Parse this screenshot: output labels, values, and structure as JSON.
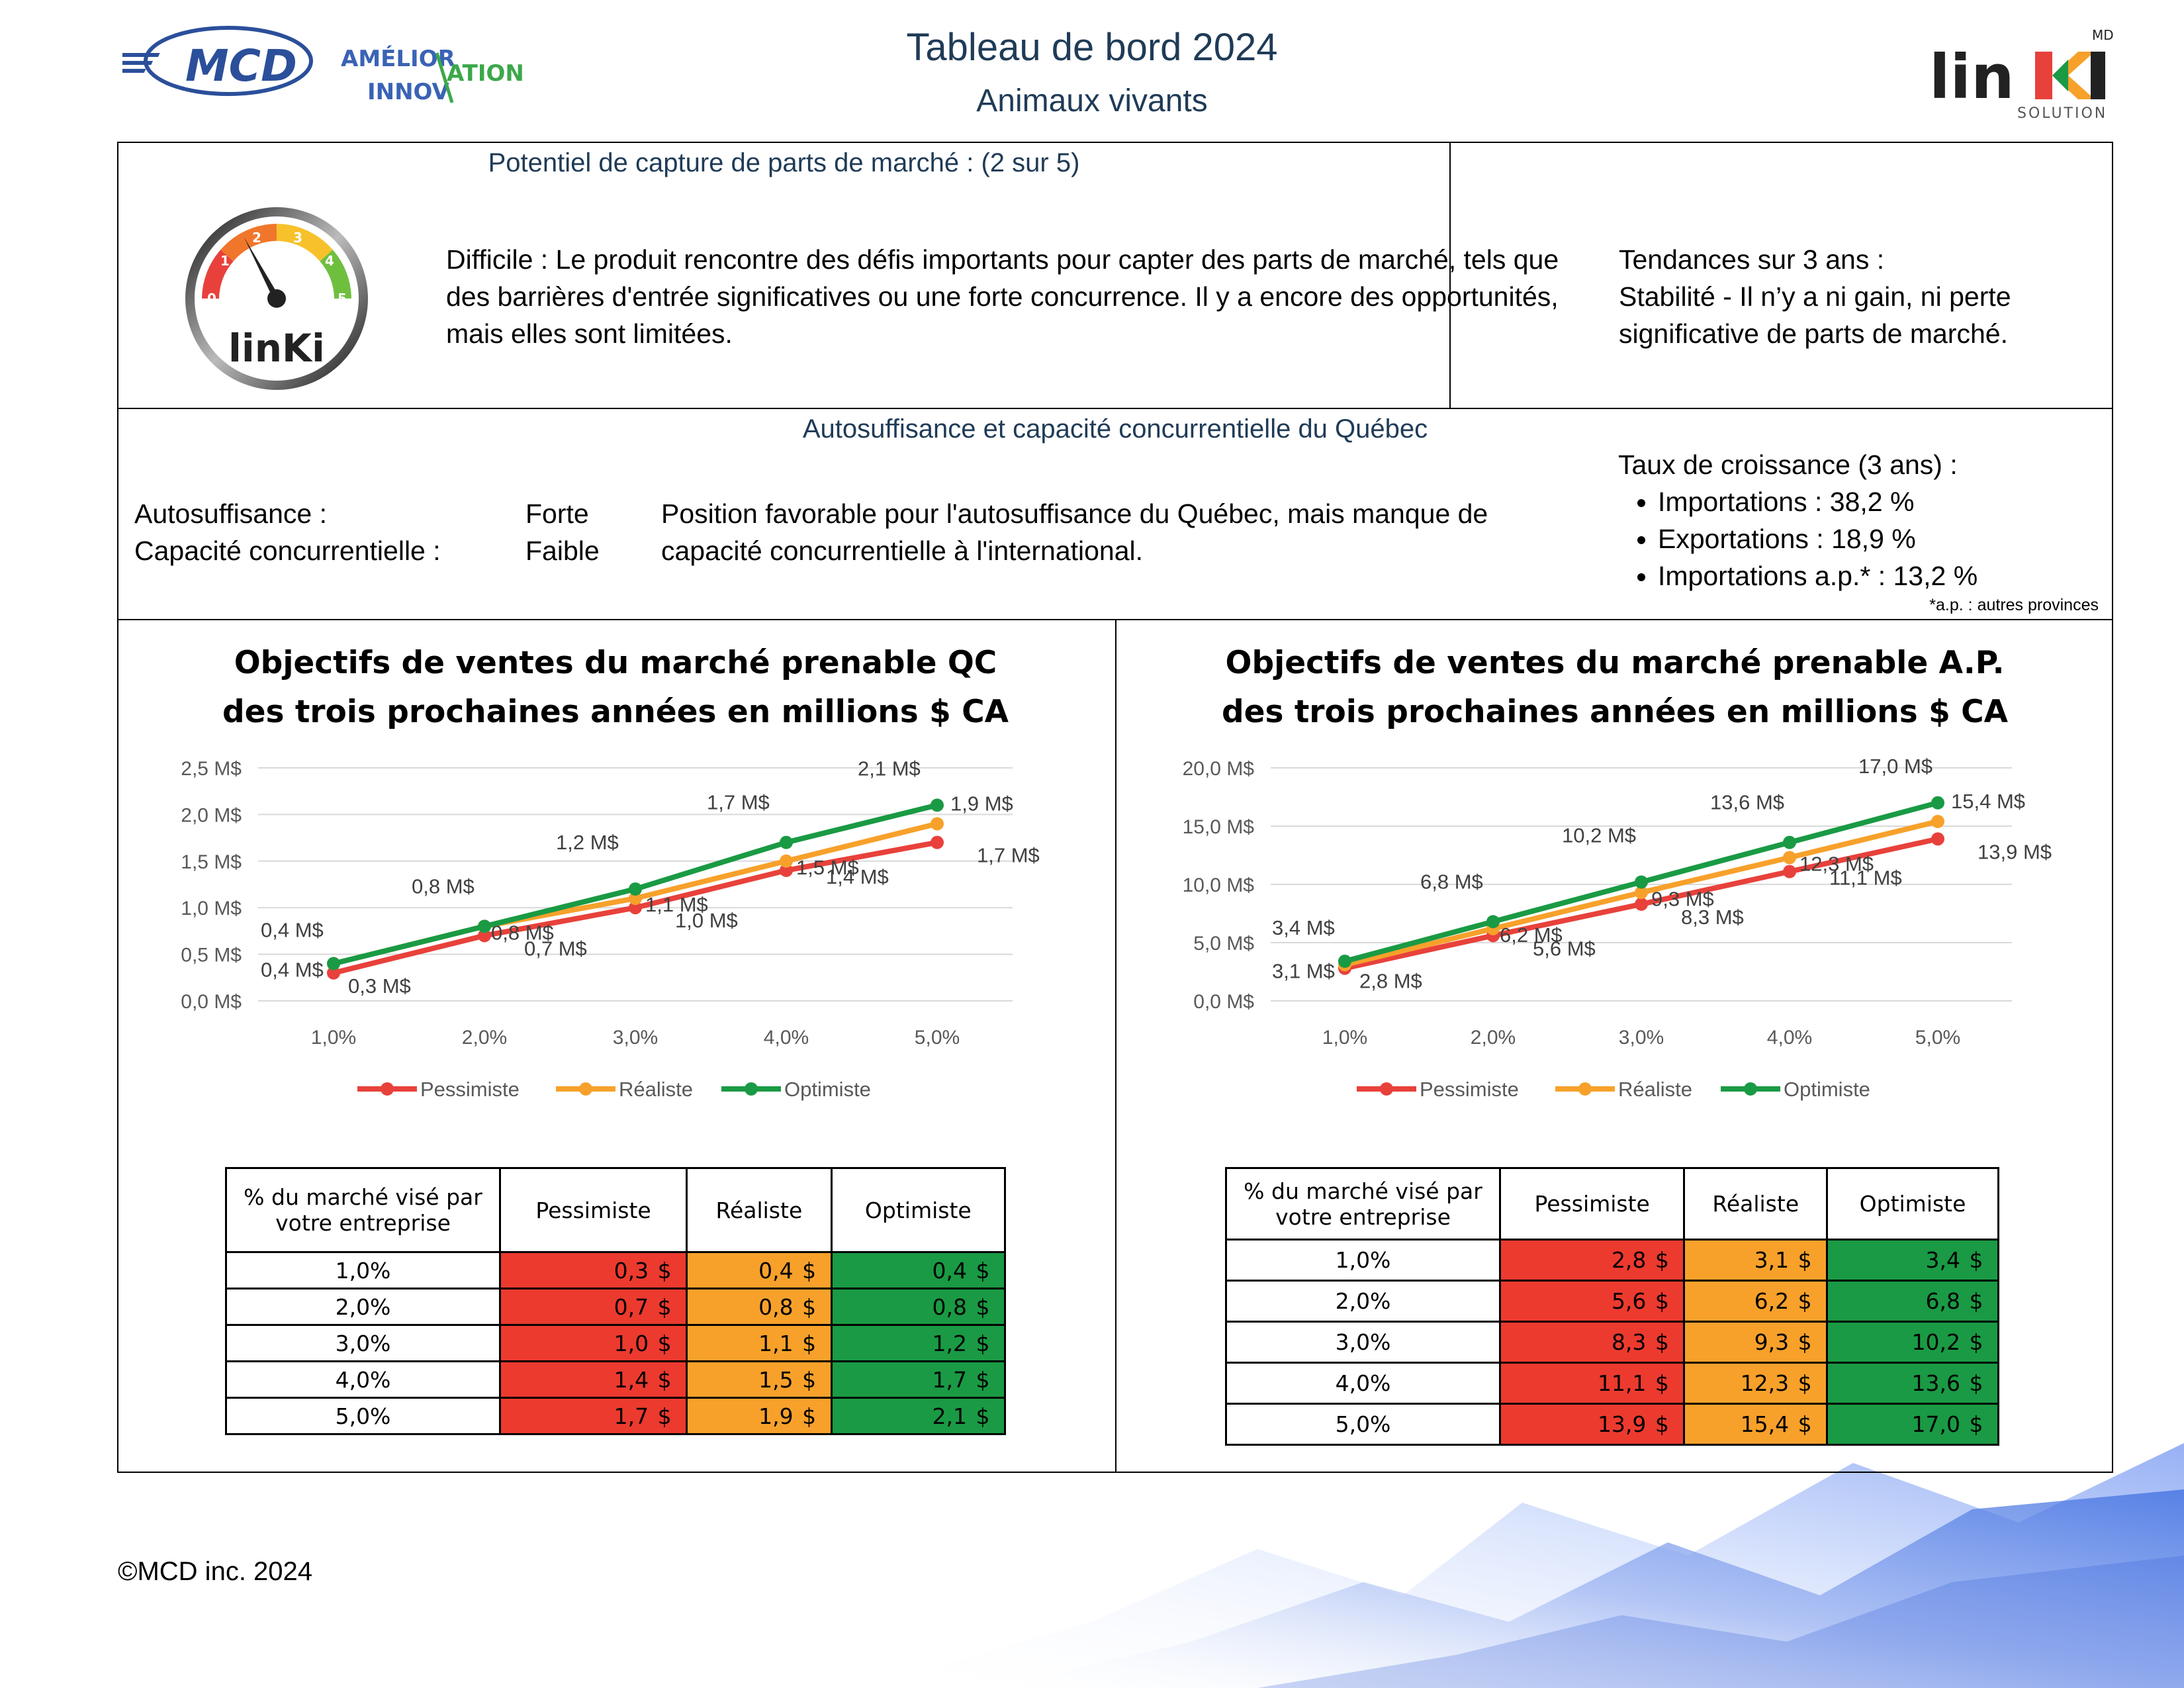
{
  "header": {
    "title": "Tableau de bord 2024",
    "subtitle": "Animaux vivants",
    "logo_mcd": "MCD",
    "logo_amelioration": "AMÉLIORATION",
    "logo_innovation": "INNOVATION",
    "logo_linki": "linKi",
    "logo_linki_sub": "SOLUTION",
    "logo_linki_md": "MD"
  },
  "potentiel": {
    "title": "Potentiel de capture de parts de marché : (2 sur 5)",
    "gauge_value": 2,
    "gauge_max": 5,
    "gauge_ticks": [
      "0",
      "1",
      "2",
      "3",
      "4",
      "5"
    ],
    "gauge_brand": "linKi",
    "description": "Difficile : Le produit rencontre des défis importants pour capter des parts de marché, tels que des barrières d'entrée significatives ou une forte concurrence. Il y a encore des opportunités, mais elles sont limitées.",
    "tendances_title": "Tendances sur 3 ans :",
    "tendances_text": "Stabilité - Il n’y a ni gain, ni perte significative de parts de marché."
  },
  "autosuffisance": {
    "title": "Autosuffisance et capacité concurrentielle du Québec",
    "label_auto": "Autosuffisance :",
    "value_auto": "Forte",
    "label_cap": "Capacité concurrentielle :",
    "value_cap": "Faible",
    "description": "Position favorable pour l'autosuffisance du Québec, mais manque de capacité concurrentielle à l'international.",
    "croissance_title": "Taux de croissance (3 ans) :",
    "croissance_items": [
      "Importations : 38,2 %",
      "Exportations : 18,9 %",
      "Importations a.p.* : 13,2 %"
    ],
    "footnote": "*a.p. : autres provinces"
  },
  "chart_data": [
    {
      "type": "line",
      "title_line1": "Objectifs de ventes du marché prenable QC",
      "title_line2": "des trois prochaines années en millions $ CA",
      "categories": [
        "1,0%",
        "2,0%",
        "3,0%",
        "4,0%",
        "5,0%"
      ],
      "y_ticks": [
        "0,0 M$",
        "0,5 M$",
        "1,0 M$",
        "1,5 M$",
        "2,0 M$",
        "2,5 M$"
      ],
      "ylim": [
        0,
        2.5
      ],
      "grid": true,
      "legend": "bottom",
      "series": [
        {
          "name": "Pessimiste",
          "color": "#e8413b",
          "values": [
            0.3,
            0.7,
            1.0,
            1.4,
            1.7
          ],
          "labels": [
            "0,3 M$",
            "0,7 M$",
            "1,0 M$",
            "1,4 M$",
            "1,7 M$"
          ]
        },
        {
          "name": "Réaliste",
          "color": "#f7a12b",
          "values": [
            0.4,
            0.8,
            1.1,
            1.5,
            1.9
          ],
          "labels": [
            "0,4 M$",
            "0,8 M$",
            "1,1 M$",
            "1,5 M$",
            "1,9 M$"
          ]
        },
        {
          "name": "Optimiste",
          "color": "#1a9a44",
          "values": [
            0.4,
            0.8,
            1.2,
            1.7,
            2.1
          ],
          "labels": [
            "0,4 M$",
            "0,8 M$",
            "1,2 M$",
            "1,7 M$",
            "2,1 M$"
          ]
        }
      ]
    },
    {
      "type": "line",
      "title_line1": "Objectifs de ventes du marché prenable A.P.",
      "title_line2": "des trois prochaines années en millions $ CA",
      "categories": [
        "1,0%",
        "2,0%",
        "3,0%",
        "4,0%",
        "5,0%"
      ],
      "y_ticks": [
        "0,0 M$",
        "5,0 M$",
        "10,0 M$",
        "15,0 M$",
        "20,0 M$"
      ],
      "ylim": [
        0,
        20
      ],
      "grid": true,
      "legend": "bottom",
      "series": [
        {
          "name": "Pessimiste",
          "color": "#e8413b",
          "values": [
            2.8,
            5.6,
            8.3,
            11.1,
            13.9
          ],
          "labels": [
            "2,8 M$",
            "5,6 M$",
            "8,3 M$",
            "11,1 M$",
            "13,9 M$"
          ]
        },
        {
          "name": "Réaliste",
          "color": "#f7a12b",
          "values": [
            3.1,
            6.2,
            9.3,
            12.3,
            15.4
          ],
          "labels": [
            "3,1 M$",
            "6,2 M$",
            "9,3 M$",
            "12,3 M$",
            "15,4 M$"
          ]
        },
        {
          "name": "Optimiste",
          "color": "#1a9a44",
          "values": [
            3.4,
            6.8,
            10.2,
            13.6,
            17.0
          ],
          "labels": [
            "3,4 M$",
            "6,8 M$",
            "10,2 M$",
            "13,6 M$",
            "17,0 M$"
          ]
        }
      ]
    }
  ],
  "tables": [
    {
      "header_first": "% du marché visé par votre entreprise",
      "headers": [
        "Pessimiste",
        "Réaliste",
        "Optimiste"
      ],
      "currency": "$",
      "rows": [
        {
          "pct": "1,0%",
          "values": [
            "0,3",
            "0,4",
            "0,4"
          ]
        },
        {
          "pct": "2,0%",
          "values": [
            "0,7",
            "0,8",
            "0,8"
          ]
        },
        {
          "pct": "3,0%",
          "values": [
            "1,0",
            "1,1",
            "1,2"
          ]
        },
        {
          "pct": "4,0%",
          "values": [
            "1,4",
            "1,5",
            "1,7"
          ]
        },
        {
          "pct": "5,0%",
          "values": [
            "1,7",
            "1,9",
            "2,1"
          ]
        }
      ]
    },
    {
      "header_first": "% du marché visé par votre entreprise",
      "headers": [
        "Pessimiste",
        "Réaliste",
        "Optimiste"
      ],
      "currency": "$",
      "rows": [
        {
          "pct": "1,0%",
          "values": [
            "2,8",
            "3,1",
            "3,4"
          ]
        },
        {
          "pct": "2,0%",
          "values": [
            "5,6",
            "6,2",
            "6,8"
          ]
        },
        {
          "pct": "3,0%",
          "values": [
            "8,3",
            "9,3",
            "10,2"
          ]
        },
        {
          "pct": "4,0%",
          "values": [
            "11,1",
            "12,3",
            "13,6"
          ]
        },
        {
          "pct": "5,0%",
          "values": [
            "13,9",
            "15,4",
            "17,0"
          ]
        }
      ]
    }
  ],
  "footer": {
    "copyright": "©MCD inc. 2024"
  }
}
